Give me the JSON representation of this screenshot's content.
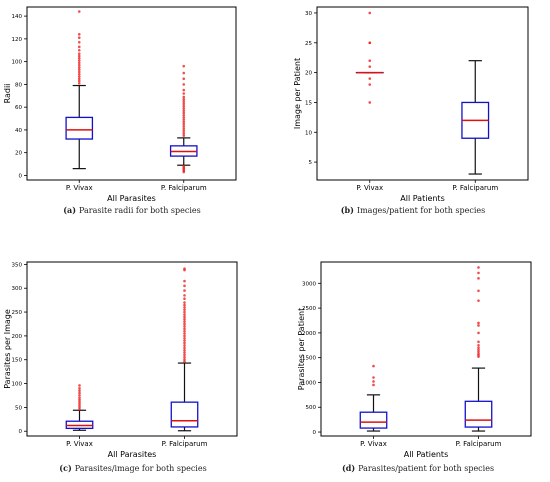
{
  "chart_data": [
    {
      "type": "box",
      "caption_tag": "(a)",
      "caption_text": "Parasite radii for both species",
      "xlabel": "All Parasites",
      "ylabel": "Radii",
      "categories": [
        "P. Vivax",
        "P. Falciparum"
      ],
      "ylim": [
        -4,
        148
      ],
      "yticks": [
        0,
        20,
        40,
        60,
        80,
        100,
        120,
        140
      ],
      "boxes": [
        {
          "min": 6,
          "q1": 32,
          "median": 40,
          "q3": 51,
          "max": 79,
          "outliers": [
            81,
            83,
            85,
            87,
            89,
            91,
            93,
            95,
            97,
            99,
            101,
            103,
            105,
            107,
            110,
            113,
            117,
            121,
            124,
            144
          ]
        },
        {
          "min": 9,
          "q1": 17,
          "median": 21,
          "q3": 26,
          "max": 33,
          "outliers": [
            3,
            4,
            5,
            6,
            7,
            8,
            35,
            37,
            39,
            41,
            43,
            45,
            47,
            49,
            51,
            53,
            55,
            57,
            59,
            61,
            63,
            65,
            67,
            69,
            72,
            75,
            80,
            85,
            90,
            96
          ]
        }
      ]
    },
    {
      "type": "box",
      "caption_tag": "(b)",
      "caption_text": "Images/patient for both species",
      "xlabel": "All Patients",
      "ylabel": "Image per Patient",
      "categories": [
        "P. Vivax",
        "P. Falciparum"
      ],
      "ylim": [
        2,
        31
      ],
      "yticks": [
        5,
        10,
        15,
        20,
        25,
        30
      ],
      "boxes": [
        {
          "min": 20,
          "q1": 20,
          "median": 20,
          "q3": 20,
          "max": 20,
          "outliers": [
            15,
            18,
            19,
            21,
            22,
            25,
            25,
            30
          ]
        },
        {
          "min": 3,
          "q1": 9,
          "median": 12,
          "q3": 15,
          "max": 22,
          "outliers": []
        }
      ]
    },
    {
      "type": "box",
      "caption_tag": "(c)",
      "caption_text": "Parasites/image for both species",
      "xlabel": "All Parasites",
      "ylabel": "Parasites per Image",
      "categories": [
        "P. Vivax",
        "P. Falciparum"
      ],
      "ylim": [
        -10,
        355
      ],
      "yticks": [
        0,
        50,
        100,
        150,
        200,
        250,
        300,
        350
      ],
      "boxes": [
        {
          "min": 2,
          "q1": 6,
          "median": 12,
          "q3": 21,
          "max": 44,
          "outliers": [
            46,
            50,
            54,
            58,
            62,
            66,
            70,
            75,
            80,
            85,
            90,
            96
          ]
        },
        {
          "min": 1,
          "q1": 9,
          "median": 22,
          "q3": 61,
          "max": 143,
          "outliers": [
            146,
            150,
            155,
            160,
            165,
            170,
            175,
            180,
            185,
            190,
            195,
            200,
            205,
            210,
            215,
            220,
            225,
            230,
            235,
            240,
            245,
            250,
            255,
            260,
            265,
            270,
            278,
            285,
            295,
            305,
            315,
            338,
            341
          ]
        }
      ]
    },
    {
      "type": "box",
      "caption_tag": "(d)",
      "caption_text": "Parasites/patient for both species",
      "xlabel": "All Patients",
      "ylabel": "Parasites per Patient",
      "categories": [
        "P. Vivax",
        "P. Falciparum"
      ],
      "ylim": [
        -80,
        3430
      ],
      "yticks": [
        0,
        500,
        1000,
        1500,
        2000,
        2500,
        3000
      ],
      "boxes": [
        {
          "min": 20,
          "q1": 80,
          "median": 200,
          "q3": 400,
          "max": 750,
          "outliers": [
            950,
            1020,
            1100,
            1330
          ]
        },
        {
          "min": 20,
          "q1": 100,
          "median": 240,
          "q3": 620,
          "max": 1290,
          "outliers": [
            1520,
            1550,
            1580,
            1620,
            1660,
            1700,
            1750,
            1820,
            2000,
            2150,
            2200,
            2650,
            2850,
            3100,
            3210,
            3320
          ]
        }
      ]
    }
  ],
  "colors": {
    "box": "#1111cc",
    "median": "#dd1111",
    "whisker": "#111111",
    "outlier": "#ee2222",
    "caption": "#222222"
  }
}
